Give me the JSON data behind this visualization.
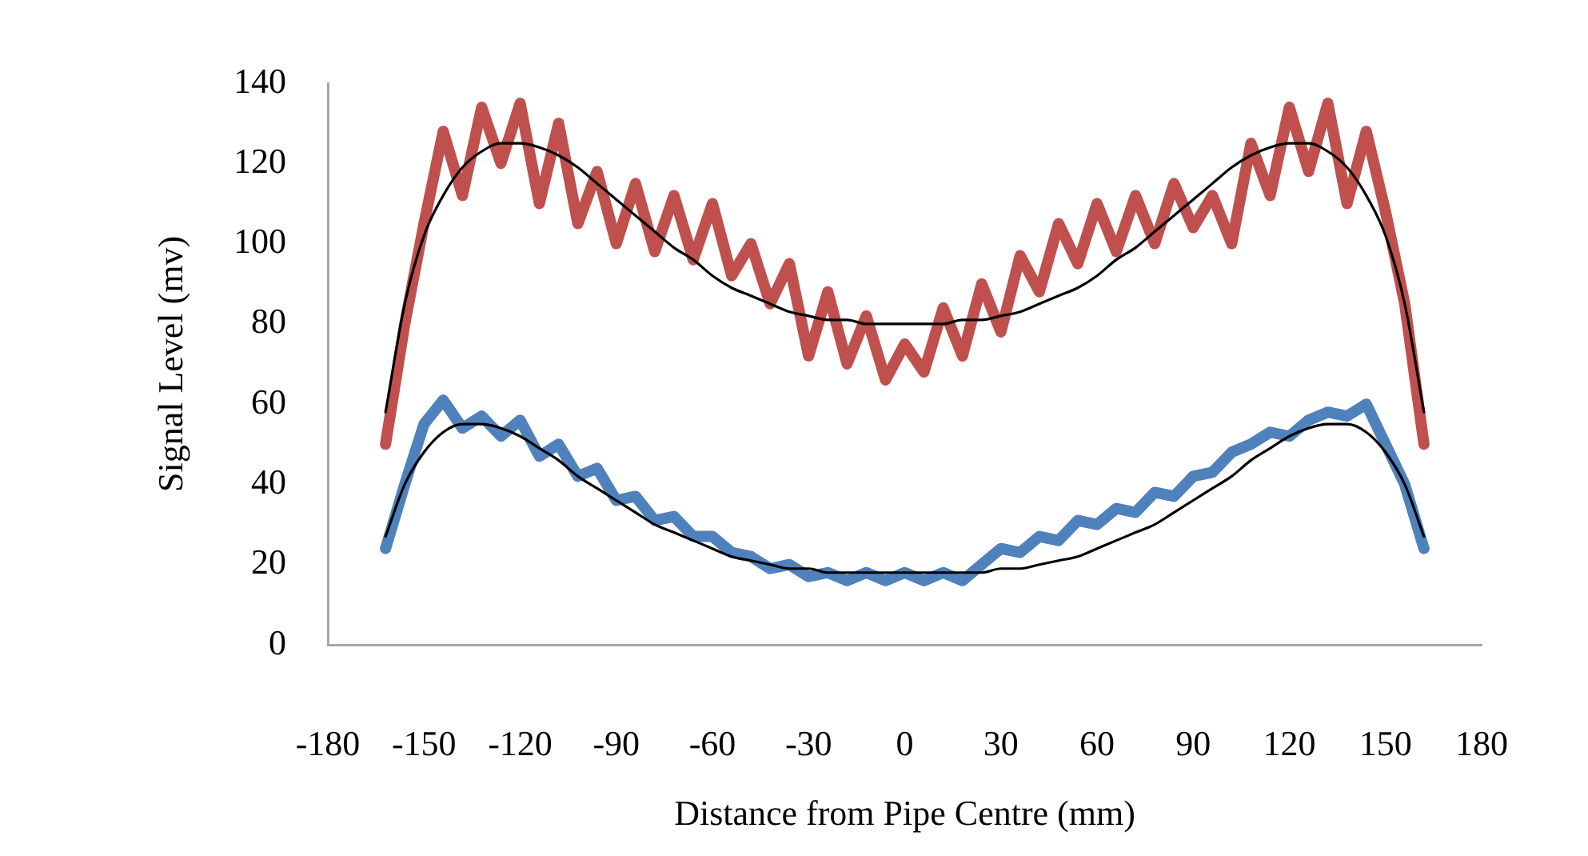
{
  "chart_data": {
    "type": "line",
    "xlabel": "Distance from Pipe Centre (mm)",
    "ylabel": "Signal Level (mv)",
    "xlim": [
      -180,
      180
    ],
    "ylim": [
      0,
      140
    ],
    "xticks": [
      -180,
      -150,
      -120,
      -90,
      -60,
      -30,
      0,
      30,
      60,
      90,
      120,
      150,
      180
    ],
    "yticks": [
      0,
      20,
      40,
      60,
      80,
      100,
      120,
      140
    ],
    "grid": false,
    "legend": false,
    "marker": "none",
    "line_style": "solid",
    "series": [
      {
        "color": "#c0504d",
        "x": [
          -162,
          -156,
          -150,
          -144,
          -138,
          -132,
          -126,
          -120,
          -114,
          -108,
          -102,
          -96,
          -90,
          -84,
          -78,
          -72,
          -66,
          -60,
          -54,
          -48,
          -42,
          -36,
          -30,
          -24,
          -18,
          -12,
          -6,
          0,
          6,
          12,
          18,
          24,
          30,
          36,
          42,
          48,
          54,
          60,
          66,
          72,
          78,
          84,
          90,
          96,
          102,
          108,
          114,
          120,
          126,
          132,
          138,
          144,
          150,
          156,
          162
        ],
        "values": [
          50,
          80,
          105,
          128,
          112,
          134,
          120,
          135,
          110,
          130,
          105,
          118,
          100,
          115,
          98,
          112,
          96,
          110,
          92,
          100,
          85,
          95,
          72,
          88,
          70,
          82,
          66,
          75,
          68,
          84,
          72,
          90,
          78,
          97,
          88,
          105,
          95,
          110,
          98,
          112,
          100,
          115,
          104,
          112,
          100,
          125,
          112,
          134,
          118,
          135,
          110,
          128,
          108,
          85,
          50
        ]
      },
      {
        "color": "#4f81bd",
        "x": [
          -162,
          -156,
          -150,
          -144,
          -138,
          -132,
          -126,
          -120,
          -114,
          -108,
          -102,
          -96,
          -90,
          -84,
          -78,
          -72,
          -66,
          -60,
          -54,
          -48,
          -42,
          -36,
          -30,
          -24,
          -18,
          -12,
          -6,
          0,
          6,
          12,
          18,
          24,
          30,
          36,
          42,
          48,
          54,
          60,
          66,
          72,
          78,
          84,
          90,
          96,
          102,
          108,
          114,
          120,
          126,
          132,
          138,
          144,
          150,
          156,
          162
        ],
        "values": [
          24,
          40,
          55,
          61,
          54,
          57,
          52,
          56,
          47,
          50,
          42,
          44,
          36,
          37,
          31,
          32,
          27,
          27,
          23,
          22,
          19,
          20,
          17,
          18,
          16,
          18,
          16,
          18,
          16,
          18,
          16,
          20,
          24,
          23,
          27,
          26,
          31,
          30,
          34,
          33,
          38,
          37,
          42,
          43,
          48,
          50,
          53,
          52,
          56,
          58,
          57,
          60,
          50,
          40,
          24
        ]
      },
      {
        "color": "#000000",
        "x": [
          -162,
          -156,
          -150,
          -144,
          -138,
          -132,
          -126,
          -120,
          -114,
          -108,
          -102,
          -96,
          -90,
          -84,
          -78,
          -72,
          -66,
          -60,
          -54,
          -48,
          -42,
          -36,
          -30,
          -24,
          -18,
          -12,
          -6,
          0,
          6,
          12,
          18,
          24,
          30,
          36,
          42,
          48,
          54,
          60,
          66,
          72,
          78,
          84,
          90,
          96,
          102,
          108,
          114,
          120,
          126,
          132,
          138,
          144,
          150,
          156,
          162
        ],
        "values": [
          58,
          85,
          102,
          112,
          119,
          123,
          125,
          125,
          124,
          122,
          119,
          115,
          111,
          107,
          103,
          99,
          96,
          92,
          89,
          87,
          85,
          83,
          82,
          81,
          81,
          80,
          80,
          80,
          80,
          80,
          81,
          81,
          82,
          83,
          85,
          87,
          89,
          92,
          96,
          99,
          103,
          107,
          111,
          115,
          119,
          122,
          124,
          125,
          125,
          123,
          119,
          112,
          102,
          85,
          58
        ]
      },
      {
        "color": "#000000",
        "x": [
          -162,
          -156,
          -150,
          -144,
          -138,
          -132,
          -126,
          -120,
          -114,
          -108,
          -102,
          -96,
          -90,
          -84,
          -78,
          -72,
          -66,
          -60,
          -54,
          -48,
          -42,
          -36,
          -30,
          -24,
          -18,
          -12,
          -6,
          0,
          6,
          12,
          18,
          24,
          30,
          36,
          42,
          48,
          54,
          60,
          66,
          72,
          78,
          84,
          90,
          96,
          102,
          108,
          114,
          120,
          126,
          132,
          138,
          144,
          150,
          156,
          162
        ],
        "values": [
          27,
          40,
          48,
          53,
          55,
          55,
          54,
          52,
          49,
          46,
          42,
          39,
          36,
          33,
          30,
          28,
          26,
          24,
          22,
          21,
          20,
          19,
          19,
          18,
          18,
          18,
          18,
          18,
          18,
          18,
          18,
          18,
          19,
          19,
          20,
          21,
          22,
          24,
          26,
          28,
          30,
          33,
          36,
          39,
          42,
          46,
          49,
          52,
          54,
          55,
          55,
          53,
          48,
          40,
          27
        ]
      }
    ]
  }
}
